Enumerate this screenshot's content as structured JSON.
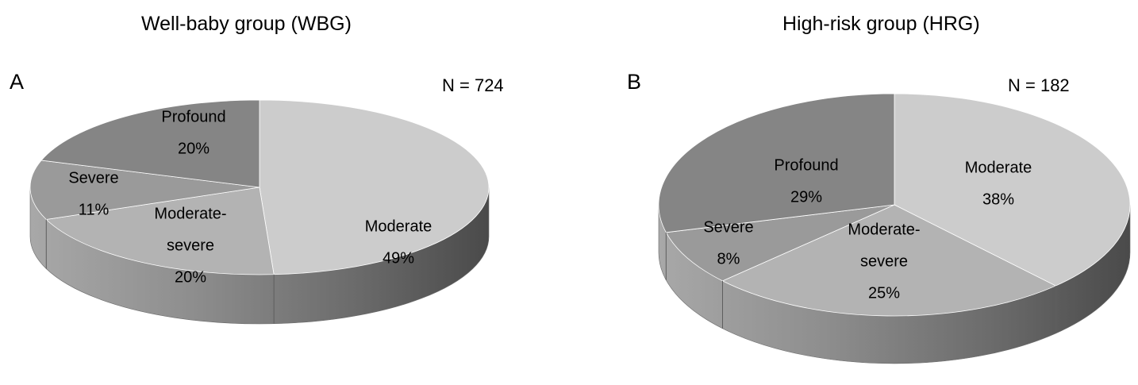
{
  "chart_data": [
    {
      "type": "pie",
      "panel": "A",
      "title": "Well-baby group (WBG)",
      "n_label": "N = 724",
      "slices": [
        {
          "lines": [
            "Moderate"
          ],
          "pct_label": "49%",
          "value": 49,
          "color": "#cccccc"
        },
        {
          "lines": [
            "Moderate-",
            "severe"
          ],
          "pct_label": "20%",
          "value": 20,
          "color": "#b3b3b3"
        },
        {
          "lines": [
            "Severe"
          ],
          "pct_label": "11%",
          "value": 11,
          "color": "#9a9a9a"
        },
        {
          "lines": [
            "Profound"
          ],
          "pct_label": "20%",
          "value": 20,
          "color": "#858585"
        }
      ]
    },
    {
      "type": "pie",
      "panel": "B",
      "title": "High-risk group (HRG)",
      "n_label": "N = 182",
      "slices": [
        {
          "lines": [
            "Moderate"
          ],
          "pct_label": "38%",
          "value": 38,
          "color": "#cccccc"
        },
        {
          "lines": [
            "Moderate-",
            "severe"
          ],
          "pct_label": "25%",
          "value": 25,
          "color": "#b3b3b3"
        },
        {
          "lines": [
            "Severe"
          ],
          "pct_label": "8%",
          "value": 8,
          "color": "#9a9a9a"
        },
        {
          "lines": [
            "Profound"
          ],
          "pct_label": "29%",
          "value": 29,
          "color": "#858585"
        }
      ]
    }
  ]
}
